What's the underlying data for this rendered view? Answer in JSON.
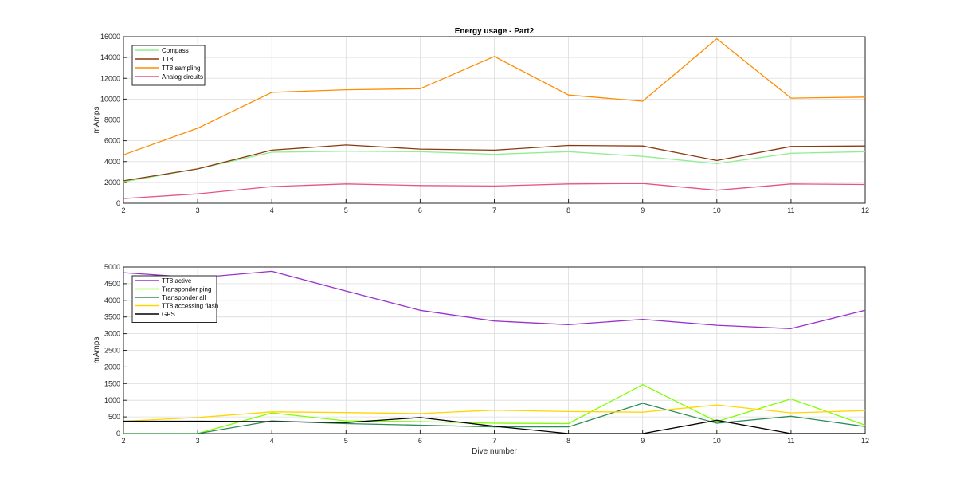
{
  "chart_data": [
    {
      "type": "line",
      "title": "Energy usage - Part2",
      "xlabel": "",
      "ylabel": "mAmps",
      "x": [
        2,
        3,
        4,
        5,
        6,
        7,
        8,
        9,
        10,
        11,
        12
      ],
      "xlim": [
        2,
        12
      ],
      "ylim": [
        0,
        16000
      ],
      "yticks": [
        0,
        2000,
        4000,
        6000,
        8000,
        10000,
        12000,
        14000,
        16000
      ],
      "grid": true,
      "legend_position": "top-left",
      "series": [
        {
          "name": "Compass",
          "color": "#90ee90",
          "values": [
            2050,
            3300,
            4900,
            5000,
            4950,
            4700,
            4950,
            4500,
            3800,
            4800,
            4950
          ]
        },
        {
          "name": "TT8",
          "color": "#8b3a0f",
          "values": [
            2150,
            3300,
            5100,
            5600,
            5200,
            5100,
            5550,
            5500,
            4100,
            5450,
            5500
          ]
        },
        {
          "name": "TT8 sampling",
          "color": "#ff8c00",
          "values": [
            4650,
            7200,
            10650,
            10900,
            11000,
            14100,
            10400,
            9800,
            15800,
            10100,
            10200
          ]
        },
        {
          "name": "Analog circuits",
          "color": "#e75480",
          "values": [
            450,
            900,
            1600,
            1850,
            1700,
            1650,
            1850,
            1900,
            1250,
            1850,
            1800
          ]
        }
      ]
    },
    {
      "type": "line",
      "title": "",
      "xlabel": "Dive number",
      "ylabel": "mAmps",
      "x": [
        2,
        3,
        4,
        5,
        6,
        7,
        8,
        9,
        10,
        11,
        12
      ],
      "xlim": [
        2,
        12
      ],
      "ylim": [
        0,
        5000
      ],
      "yticks": [
        0,
        500,
        1000,
        1500,
        2000,
        2500,
        3000,
        3500,
        4000,
        4500,
        5000
      ],
      "grid": true,
      "legend_position": "top-left",
      "series": [
        {
          "name": "TT8 active",
          "color": "#9932cc",
          "values": [
            4830,
            4680,
            4870,
            4280,
            3700,
            3380,
            3270,
            3430,
            3250,
            3150,
            3700
          ]
        },
        {
          "name": "Transponder ping",
          "color": "#7fff00",
          "values": [
            0,
            0,
            620,
            380,
            360,
            310,
            300,
            1470,
            360,
            1040,
            250
          ]
        },
        {
          "name": "Transponder all",
          "color": "#2e8b57",
          "values": [
            0,
            0,
            380,
            300,
            250,
            200,
            200,
            910,
            310,
            520,
            210
          ]
        },
        {
          "name": "TT8 accessing flash",
          "color": "#ffd700",
          "values": [
            370,
            480,
            650,
            630,
            600,
            700,
            660,
            640,
            860,
            620,
            690
          ]
        },
        {
          "name": "GPS",
          "color": "#000000",
          "values": [
            370,
            370,
            360,
            330,
            480,
            220,
            0,
            0,
            400,
            0,
            0
          ]
        }
      ]
    }
  ]
}
